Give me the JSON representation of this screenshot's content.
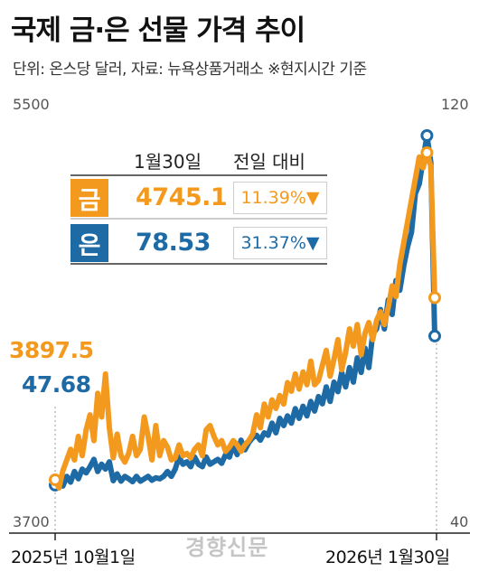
{
  "title": "국제 금·은 선물 가격 추이",
  "subtitle": "단위: 온스당 달러, 자료: 뉴욕상품거래소 ※현지시간 기준",
  "colors": {
    "gold": "#f39a1e",
    "silver": "#1d6aa5"
  },
  "chart_data": {
    "type": "line",
    "x_start_label": "2025년 10월1일",
    "x_end_label": "2026년 1월30일",
    "y_left_ticks": [
      "5500",
      "3700"
    ],
    "y_right_ticks": [
      "120",
      "40"
    ],
    "ylim_left": [
      3700,
      5500
    ],
    "ylim_right": [
      40,
      120
    ],
    "start_labels": {
      "gold": "3897.5",
      "silver": "47.68"
    },
    "table": {
      "header_date": "1월30일",
      "header_change": "전일 대비",
      "rows": [
        {
          "badge": "금",
          "price": "4745.1",
          "change": "11.39%▼"
        },
        {
          "badge": "은",
          "price": "78.53",
          "change": "31.37%▼"
        }
      ]
    },
    "series": [
      {
        "key": "gold",
        "values": [
          3897.5,
          3860,
          3940,
          3990,
          4040,
          3990,
          4100,
          4010,
          4130,
          4200,
          4080,
          4300,
          4190,
          4390,
          4140,
          4000,
          4110,
          4010,
          3980,
          4020,
          4100,
          4010,
          4040,
          4190,
          4100,
          3990,
          4150,
          4010,
          4080,
          4050,
          3990,
          4000,
          4060,
          4010,
          4020,
          4000,
          4040,
          4060,
          4010,
          4130,
          4150,
          4100,
          4060,
          4080,
          4030,
          4050,
          4080,
          4060,
          4030,
          4060,
          4080,
          4110,
          4200,
          4140,
          4250,
          4190,
          4270,
          4230,
          4290,
          4250,
          4350,
          4310,
          4390,
          4320,
          4400,
          4340,
          4450,
          4340,
          4360,
          4430,
          4500,
          4380,
          4460,
          4550,
          4410,
          4490,
          4600,
          4520,
          4620,
          4480,
          4580,
          4630,
          4550,
          4640,
          4680,
          4620,
          4700,
          4800,
          4750,
          4900,
          5000,
          5100,
          5200,
          5300,
          5400,
          5350,
          5420,
          5356,
          4745.1
        ]
      },
      {
        "key": "silver",
        "values": [
          47.68,
          48.5,
          47.5,
          49.5,
          48.3,
          50.5,
          49.0,
          51.0,
          50.2,
          51.5,
          53.0,
          50.5,
          52.0,
          51.0,
          52.5,
          48.6,
          50.0,
          48.5,
          49.5,
          49.0,
          48.4,
          49.5,
          48.5,
          49.0,
          49.5,
          48.7,
          49.2,
          49.0,
          49.5,
          50.5,
          49.5,
          51.0,
          53.5,
          52.0,
          52.5,
          51.5,
          53.5,
          52.0,
          51.5,
          53.5,
          52.0,
          52.5,
          53.0,
          52.2,
          54.0,
          53.5,
          56.0,
          54.0,
          57.0,
          55.0,
          56.5,
          57.5,
          58.0,
          57.0,
          58.5,
          58.0,
          60.5,
          58.5,
          61.5,
          60.0,
          62.0,
          60.5,
          63.5,
          61.5,
          64.0,
          62.0,
          65.0,
          63.0,
          66.0,
          64.5,
          68.0,
          65.0,
          69.0,
          67.0,
          71.0,
          68.0,
          72.0,
          69.0,
          74.0,
          71.0,
          76.0,
          72.0,
          79.0,
          80.0,
          84.0,
          80.0,
          86.0,
          83.0,
          90.0,
          88.0,
          93.0,
          97.0,
          100.0,
          108.0,
          110.0,
          115.0,
          120.0,
          114.4,
          78.53
        ]
      }
    ]
  },
  "watermark": "경향신문"
}
